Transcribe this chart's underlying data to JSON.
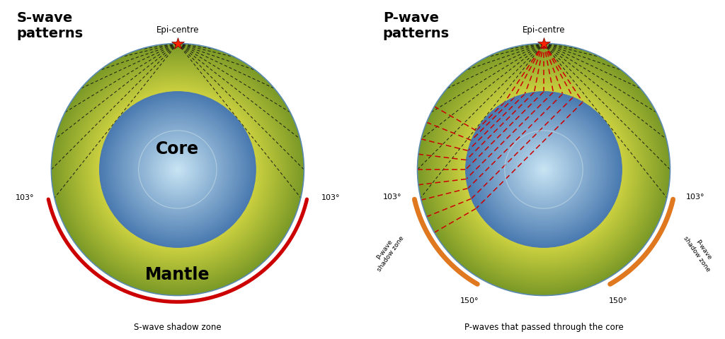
{
  "background_color": "#ffffff",
  "shadow_zone_color_s": "#cc0000",
  "shadow_zone_color_p": "#e07820",
  "epicenter_star_color": "#ff2200",
  "dashed_black_color": "#111111",
  "dashed_red_color": "#cc0000",
  "title_left": "S-wave\npatterns",
  "title_right": "P-wave\npatterns",
  "label_epi": "Epi-centre",
  "label_core": "Core",
  "label_mantle": "Mantle",
  "label_s_shadow": "S-wave shadow zone",
  "label_p_core": "P-waves that passed through the core",
  "fig_width": 10.24,
  "fig_height": 4.8,
  "outer_r": 1.1,
  "core_r": 0.68,
  "inner_core_r": 0.34
}
